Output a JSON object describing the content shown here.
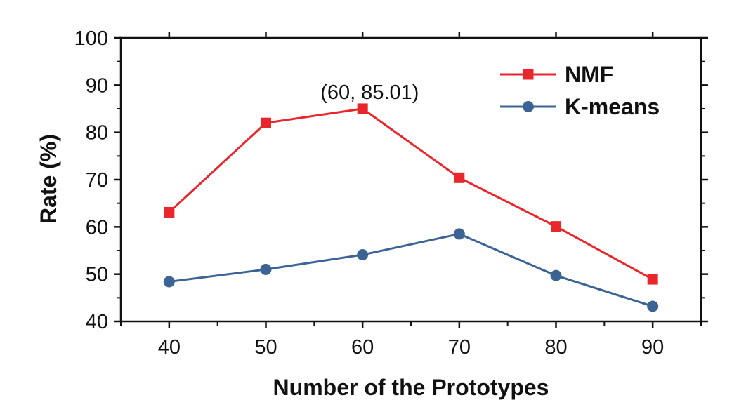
{
  "chart_data": {
    "type": "line",
    "title": "",
    "xlabel": "Number of the Prototypes",
    "ylabel": "Rate (%)",
    "x": [
      40,
      50,
      60,
      70,
      80,
      90
    ],
    "xlim": [
      35,
      95
    ],
    "ylim": [
      40,
      100
    ],
    "xticks": [
      "40",
      "50",
      "60",
      "70",
      "80",
      "90"
    ],
    "yticks": [
      "40",
      "50",
      "60",
      "70",
      "80",
      "90",
      "100"
    ],
    "legend_position": "top-right",
    "grid": false,
    "series": [
      {
        "name": "NMF",
        "color": "#e8262b",
        "marker": "square",
        "values": [
          63.1,
          82.0,
          85.01,
          70.4,
          60.1,
          48.9
        ]
      },
      {
        "name": "K-means",
        "color": "#3b6494",
        "marker": "circle",
        "values": [
          48.4,
          51.0,
          54.1,
          58.5,
          49.7,
          43.2
        ]
      }
    ],
    "annotations": [
      {
        "text": "(60, 85.01)",
        "x": 60,
        "y": 85.01
      }
    ]
  }
}
